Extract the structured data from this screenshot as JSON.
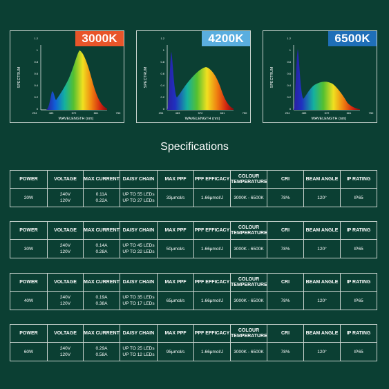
{
  "charts": [
    {
      "badge": "3000K",
      "badge_color": "#e8552a",
      "ylabel": "SPECTRUM",
      "xlabel": "WAVELENGTH (nm)",
      "yticks": [
        "1.2",
        "1",
        "0.8",
        "0.6",
        "0.4",
        "0.2",
        "0"
      ],
      "xticks": [
        "294",
        "483",
        "572",
        "661",
        "750"
      ]
    },
    {
      "badge": "4200K",
      "badge_color": "#5aaedf",
      "ylabel": "SPECTRUM",
      "xlabel": "WAVELENGTH (nm)",
      "yticks": [
        "1.2",
        "1",
        "0.8",
        "0.6",
        "0.4",
        "0.2",
        "0"
      ],
      "xticks": [
        "294",
        "483",
        "572",
        "661",
        "750"
      ]
    },
    {
      "badge": "6500K",
      "badge_color": "#1f6fb8",
      "ylabel": "SPECTRUM",
      "xlabel": "WAVELENGTH (nm)",
      "yticks": [
        "1.2",
        "1",
        "0.8",
        "0.6",
        "0.4",
        "0.2",
        "0"
      ],
      "xticks": [
        "294",
        "483",
        "572",
        "661",
        "750"
      ]
    }
  ],
  "title": "Specifications",
  "headers": [
    "POWER",
    "VOLTAGE",
    "MAX CURRENT",
    "DAISY CHAIN",
    "MAX PPF",
    "PPF EFFICACY",
    "COLOUR TEMPERATURE",
    "CRI",
    "BEAM ANGLE",
    "IP RATING"
  ],
  "rows": [
    {
      "power": "20W",
      "voltage": [
        "240V",
        "120V"
      ],
      "current": [
        "0.11A",
        "0.22A"
      ],
      "daisy": [
        "UP TO 55 LEDs",
        "UP TO 27 LEDs"
      ],
      "ppf": "33μmol/s",
      "efficacy": "1.66μmol/J",
      "colour": "3000K - 6500K",
      "cri": "78%",
      "beam": "120°",
      "ip": "IP65"
    },
    {
      "power": "30W",
      "voltage": [
        "240V",
        "120V"
      ],
      "current": [
        "0.14A",
        "0.28A"
      ],
      "daisy": [
        "UP TO 45 LEDs",
        "UP TO 22 LEDs"
      ],
      "ppf": "50μmol/s",
      "efficacy": "1.66μmol/J",
      "colour": "3000K - 6500K",
      "cri": "78%",
      "beam": "120°",
      "ip": "IP65"
    },
    {
      "power": "40W",
      "voltage": [
        "240V",
        "120V"
      ],
      "current": [
        "0.19A",
        "0.38A"
      ],
      "daisy": [
        "UP TO 35 LEDs",
        "UP TO 17 LEDs"
      ],
      "ppf": "65μmol/s",
      "efficacy": "1.66μmol/J",
      "colour": "3000K - 6500K",
      "cri": "78%",
      "beam": "120°",
      "ip": "IP65"
    },
    {
      "power": "60W",
      "voltage": [
        "240V",
        "120V"
      ],
      "current": [
        "0.29A",
        "0.58A"
      ],
      "daisy": [
        "UP TO 25 LEDs",
        "UP TO 12 LEDs"
      ],
      "ppf": "95μmol/s",
      "efficacy": "1.66μmol/J",
      "colour": "3000K - 6500K",
      "cri": "78%",
      "beam": "120°",
      "ip": "IP65"
    }
  ]
}
